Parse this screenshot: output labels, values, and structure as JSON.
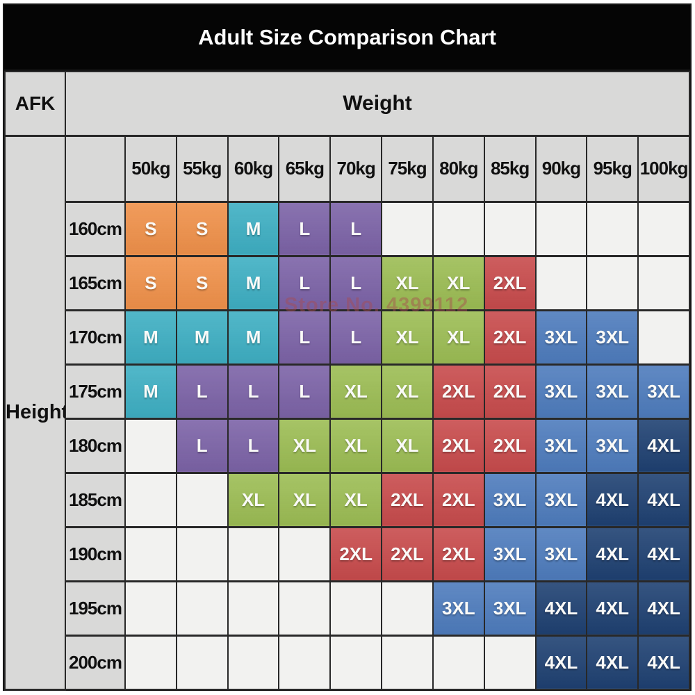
{
  "chart_data": {
    "type": "table",
    "title": "Adult Size Comparison Chart",
    "corner_label": "AFK",
    "col_group_label": "Weight",
    "row_group_label": "Height",
    "columns": [
      "50kg",
      "55kg",
      "60kg",
      "65kg",
      "70kg",
      "75kg",
      "80kg",
      "85kg",
      "90kg",
      "95kg",
      "100kg"
    ],
    "rows": [
      "160cm",
      "165cm",
      "170cm",
      "175cm",
      "180cm",
      "185cm",
      "190cm",
      "195cm",
      "200cm"
    ],
    "cells": [
      [
        "S",
        "S",
        "M",
        "L",
        "L",
        "",
        "",
        "",
        "",
        "",
        ""
      ],
      [
        "S",
        "S",
        "M",
        "L",
        "L",
        "XL",
        "XL",
        "2XL",
        "",
        "",
        ""
      ],
      [
        "M",
        "M",
        "M",
        "L",
        "L",
        "XL",
        "XL",
        "2XL",
        "3XL",
        "3XL",
        ""
      ],
      [
        "M",
        "L",
        "L",
        "L",
        "XL",
        "XL",
        "2XL",
        "2XL",
        "3XL",
        "3XL",
        "3XL"
      ],
      [
        "",
        "L",
        "L",
        "XL",
        "XL",
        "XL",
        "2XL",
        "2XL",
        "3XL",
        "3XL",
        "4XL"
      ],
      [
        "",
        "",
        "XL",
        "XL",
        "XL",
        "2XL",
        "2XL",
        "3XL",
        "3XL",
        "4XL",
        "4XL"
      ],
      [
        "",
        "",
        "",
        "",
        "2XL",
        "2XL",
        "2XL",
        "3XL",
        "3XL",
        "4XL",
        "4XL"
      ],
      [
        "",
        "",
        "",
        "",
        "",
        "",
        "3XL",
        "3XL",
        "4XL",
        "4XL",
        "4XL"
      ],
      [
        "",
        "",
        "",
        "",
        "",
        "",
        "",
        "",
        "4XL",
        "4XL",
        "4XL"
      ]
    ],
    "size_colors": {
      "S": "#F0914A",
      "M": "#3EAFC3",
      "L": "#7C63A7",
      "XL": "#9CBD54",
      "2XL": "#C84B4C",
      "3XL": "#4E7CBD",
      "4XL": "#1F4172"
    },
    "watermark": "Store No. 4399112"
  },
  "colors": {
    "banner_bg": "#050505",
    "banner_text": "#FFFFFF",
    "header_bg": "#D9D9D8",
    "empty_cell_bg": "#F2F2F0",
    "grid_line": "#282828",
    "size_text": "#FAFAF8",
    "label_text": "#101010",
    "watermark_color": "rgba(168,75,80,0.45)"
  }
}
